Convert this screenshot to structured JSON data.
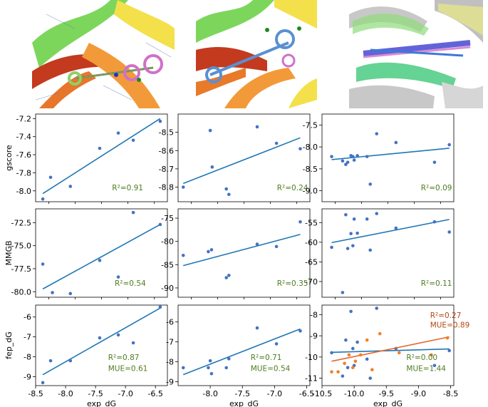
{
  "colors": {
    "points": "#4472c4",
    "fit_blue": "#1f77b4",
    "fit_orange": "#e8642c",
    "points_orange": "#f07f2a",
    "annot_green": "#4e7d1e",
    "annot_orange": "#b5470f",
    "axis": "#000000"
  },
  "structure_images": [
    {
      "description_icon": "protein-ribbon-ligand-icon"
    },
    {
      "description_icon": "protein-ribbon-ligand-icon"
    },
    {
      "description_icon": "protein-overlay-ensemble-icon"
    }
  ],
  "chart_data": [
    {
      "type": "scatter",
      "ylabel": "gscore",
      "xlabel": "",
      "xlim": [
        -8.5,
        -6.3
      ],
      "ylim": [
        -8.12,
        -7.15
      ],
      "xticks": [
        "-8.5",
        "-8.0",
        "-7.5",
        "-7.0",
        "-6.5"
      ],
      "yticks": [
        -7.2,
        -7.4,
        -7.6,
        -7.8,
        -8.0
      ],
      "ytick_labels": [
        "-7.2",
        "-7.4",
        "-7.6",
        "-7.8",
        "-8.0"
      ],
      "series": [
        {
          "x": [
            -8.38,
            -8.25,
            -7.92,
            -7.43,
            -7.12,
            -6.87,
            -6.42
          ],
          "y": [
            -8.09,
            -7.85,
            -7.95,
            -7.53,
            -7.36,
            -7.44,
            -7.23
          ],
          "fit": [
            [
              -8.38,
              -8.03
            ],
            [
              -6.42,
              -7.2
            ]
          ]
        }
      ],
      "annotations": [
        {
          "text": "R²=0.91"
        }
      ]
    },
    {
      "type": "scatter",
      "ylabel": "",
      "xlabel": "",
      "xlim": [
        -8.5,
        -6.45
      ],
      "ylim": [
        -8.88,
        -8.4
      ],
      "series": [
        {
          "x": [
            -8.42,
            -8.0,
            -7.97,
            -7.75,
            -7.71,
            -7.27,
            -6.97,
            -6.6
          ],
          "y": [
            -8.8,
            -8.49,
            -8.69,
            -8.81,
            -8.84,
            -8.47,
            -8.56,
            -8.59
          ],
          "fit": [
            [
              -8.42,
              -8.78
            ],
            [
              -6.6,
              -8.53
            ]
          ]
        }
      ],
      "yticks": [
        -8.5,
        -8.6,
        -8.7,
        -8.8
      ],
      "ytick_labels": [
        "-8.5",
        "-8.6",
        "-8.7",
        "-8.8"
      ],
      "annotations": [
        {
          "text": "R²=0.24"
        }
      ]
    },
    {
      "type": "scatter",
      "ylabel": "",
      "xlabel": "",
      "xlim": [
        -10.5,
        -8.45
      ],
      "ylim": [
        -9.25,
        -7.25
      ],
      "series": [
        {
          "x": [
            -10.35,
            -10.18,
            -10.13,
            -10.1,
            -10.05,
            -10.02,
            -10.0,
            -9.95,
            -9.8,
            -9.75,
            -9.65,
            -9.35,
            -8.75,
            -8.52
          ],
          "y": [
            -8.22,
            -8.32,
            -8.4,
            -8.35,
            -8.2,
            -8.22,
            -8.3,
            -8.2,
            -8.22,
            -8.85,
            -7.7,
            -7.9,
            -8.35,
            -7.95
          ],
          "fit": [
            [
              -10.35,
              -8.29
            ],
            [
              -8.52,
              -8.03
            ]
          ]
        }
      ],
      "yticks": [
        -7.5,
        -8.0,
        -8.5,
        -9.0
      ],
      "ytick_labels": [
        "-7.5",
        "-8.0",
        "-8.5",
        "-9.0"
      ],
      "annotations": [
        {
          "text": "R²=0.09"
        }
      ]
    },
    {
      "type": "scatter",
      "ylabel": "MMGB",
      "xlabel": "",
      "xlim": [
        -8.5,
        -6.3
      ],
      "ylim": [
        -80.6,
        -71.0
      ],
      "series": [
        {
          "x": [
            -8.38,
            -8.22,
            -7.92,
            -7.43,
            -7.12,
            -6.87,
            -6.42
          ],
          "y": [
            -77.0,
            -80.1,
            -80.2,
            -76.6,
            -78.4,
            -71.4,
            -72.7
          ],
          "fit": [
            [
              -8.38,
              -79.7
            ],
            [
              -6.42,
              -72.7
            ]
          ]
        }
      ],
      "yticks": [
        -72.5,
        -75.0,
        -77.5,
        -80.0
      ],
      "ytick_labels": [
        "-72.5",
        "-75.0",
        "-77.5",
        "-80.0"
      ],
      "annotations": [
        {
          "text": "R²=0.54"
        }
      ]
    },
    {
      "type": "scatter",
      "ylabel": "",
      "xlabel": "",
      "xlim": [
        -8.5,
        -6.45
      ],
      "ylim": [
        -92.0,
        -73.0
      ],
      "series": [
        {
          "x": [
            -8.42,
            -8.03,
            -7.98,
            -7.75,
            -7.71,
            -7.27,
            -6.97,
            -6.6
          ],
          "y": [
            -83.0,
            -82.2,
            -81.8,
            -87.8,
            -87.3,
            -80.6,
            -81.1,
            -75.8
          ],
          "fit": [
            [
              -8.42,
              -85.2
            ],
            [
              -6.6,
              -78.5
            ]
          ]
        }
      ],
      "yticks": [
        -75,
        -80,
        -85,
        -90
      ],
      "ytick_labels": [
        "-75",
        "-80",
        "-85",
        "-90"
      ],
      "annotations": [
        {
          "text": "R²=0.35"
        }
      ]
    },
    {
      "type": "scatter",
      "ylabel": "",
      "xlabel": "",
      "xlim": [
        -10.5,
        -8.45
      ],
      "ylim": [
        -74.0,
        -51.5
      ],
      "series": [
        {
          "x": [
            -10.35,
            -10.18,
            -10.13,
            -10.1,
            -10.05,
            -10.02,
            -10.0,
            -9.95,
            -9.8,
            -9.75,
            -9.65,
            -9.35,
            -8.75,
            -8.52
          ],
          "y": [
            -61.3,
            -72.8,
            -53.0,
            -61.6,
            -57.8,
            -60.9,
            -54.1,
            -57.7,
            -54.1,
            -62.0,
            -52.7,
            -56.4,
            -54.8,
            -57.4
          ],
          "fit": [
            [
              -10.35,
              -60.1
            ],
            [
              -8.52,
              -54.2
            ]
          ]
        }
      ],
      "yticks": [
        -55,
        -60,
        -65,
        -70
      ],
      "ytick_labels": [
        "-55",
        "-60",
        "-65",
        "-70"
      ],
      "annotations": [
        {
          "text": "R²=0.11"
        }
      ]
    },
    {
      "type": "scatter",
      "ylabel": "fep_dG",
      "xlabel": "exp_dG",
      "xlim": [
        -8.5,
        -6.3
      ],
      "ylim": [
        -9.45,
        -5.4
      ],
      "xticks": [
        -8.5,
        -8.0,
        -7.5,
        -7.0,
        -6.5
      ],
      "xtick_labels": [
        "-8.5",
        "-8.0",
        "-7.5",
        "-7.0",
        "-6.5"
      ],
      "series": [
        {
          "x": [
            -8.38,
            -8.25,
            -7.92,
            -7.43,
            -7.12,
            -6.87,
            -6.42
          ],
          "y": [
            -9.3,
            -8.2,
            -8.2,
            -7.05,
            -6.9,
            -7.3,
            -5.5
          ],
          "fit": [
            [
              -8.38,
              -8.9
            ],
            [
              -6.42,
              -5.55
            ]
          ]
        }
      ],
      "yticks": [
        -6,
        -7,
        -8,
        -9
      ],
      "ytick_labels": [
        "-6",
        "-7",
        "-8",
        "-9"
      ],
      "annotations": [
        {
          "text": "R²=0.87"
        },
        {
          "text": "MUE=0.61"
        }
      ]
    },
    {
      "type": "scatter",
      "ylabel": "",
      "xlabel": "exp_dG",
      "xlim": [
        -8.5,
        -6.45
      ],
      "ylim": [
        -9.2,
        -5.15
      ],
      "xticks": [
        -8.0,
        -7.5,
        -7.0,
        -6.5
      ],
      "xtick_labels": [
        "-8.0",
        "-7.5",
        "-7.0",
        "-6.5"
      ],
      "series": [
        {
          "x": [
            -8.42,
            -8.03,
            -8.0,
            -7.98,
            -7.75,
            -7.71,
            -7.27,
            -6.97,
            -6.6
          ],
          "y": [
            -8.3,
            -8.3,
            -7.95,
            -8.6,
            -8.3,
            -7.85,
            -6.3,
            -7.1,
            -6.45
          ],
          "fit": [
            [
              -8.42,
              -8.65
            ],
            [
              -6.6,
              -6.35
            ]
          ]
        }
      ],
      "yticks": [
        -6,
        -7,
        -8,
        -9
      ],
      "ytick_labels": [
        "-6",
        "-7",
        "-8",
        "-9"
      ],
      "annotations": [
        {
          "text": "R²=0.71"
        },
        {
          "text": "MUE=0.54"
        }
      ]
    },
    {
      "type": "scatter",
      "ylabel": "",
      "xlabel": "exp_dG",
      "xlim": [
        -10.5,
        -8.45
      ],
      "ylim": [
        -11.35,
        -7.55
      ],
      "xticks": [
        -10.5,
        -10.0,
        -9.5,
        -9.0,
        -8.5
      ],
      "xtick_labels": [
        "-10.5",
        "-10.0",
        "-9.5",
        "-9.0",
        "-8.5"
      ],
      "series": [
        {
          "name": "",
          "color": "blue",
          "x": [
            -10.35,
            -10.18,
            -10.13,
            -10.1,
            -10.05,
            -10.02,
            -10.0,
            -9.95,
            -9.8,
            -9.75,
            -9.65,
            -9.35,
            -8.75,
            -8.52
          ],
          "y": [
            -9.8,
            -10.9,
            -9.2,
            -10.5,
            -7.85,
            -9.6,
            -10.4,
            -9.3,
            -10.1,
            -11.0,
            -7.7,
            -9.6,
            -10.4,
            -9.7
          ],
          "fit": [
            [
              -10.35,
              -9.78
            ],
            [
              -8.52,
              -9.62
            ]
          ]
        },
        {
          "name": "",
          "color": "orange",
          "x": [
            -10.35,
            -10.25,
            -10.15,
            -10.08,
            -10.02,
            -9.98,
            -9.9,
            -9.8,
            -9.72,
            -9.6,
            -9.3,
            -8.8,
            -8.55
          ],
          "y": [
            -10.7,
            -10.7,
            -10.3,
            -9.9,
            -10.5,
            -10.2,
            -9.9,
            -9.2,
            -10.6,
            -8.9,
            -9.8,
            -9.9,
            -9.1
          ],
          "fit": [
            [
              -10.35,
              -10.2
            ],
            [
              -8.52,
              -9.05
            ]
          ]
        }
      ],
      "yticks": [
        -8,
        -9,
        -10,
        -11
      ],
      "ytick_labels": [
        "-8",
        "-9",
        "-10",
        "-11"
      ],
      "annotations": [
        {
          "text": "R²=0.27",
          "color": "orange"
        },
        {
          "text": "MUE=0.89",
          "color": "orange"
        },
        {
          "text": "R²=0.00"
        },
        {
          "text": "MUE=1.44"
        }
      ]
    }
  ]
}
